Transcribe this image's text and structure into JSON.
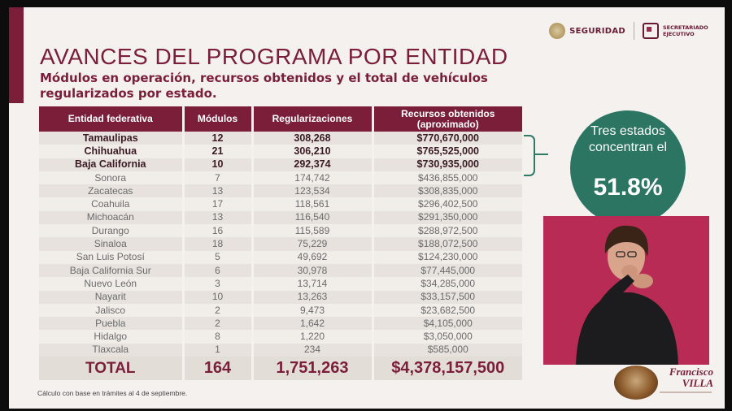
{
  "header": {
    "logo_seguridad": "SEGURIDAD",
    "logo_secretariado": "SECRETARIADO EJECUTIVO"
  },
  "slide": {
    "title": "AVANCES DEL PROGRAMA POR ENTIDAD",
    "subtitle": "Módulos en operación, recursos obtenidos y el total de vehículos regularizados por estado.",
    "footnote": "Cálculo con base en trámites al 4 de septiembre."
  },
  "table": {
    "headers": [
      "Entidad federativa",
      "Módulos",
      "Regularizaciones",
      "Recursos obtenidos (aproximado)"
    ],
    "rows": [
      {
        "entidad": "Tamaulipas",
        "modulos": "12",
        "regularizaciones": "308,268",
        "recursos": "$770,670,000",
        "highlight": true
      },
      {
        "entidad": "Chihuahua",
        "modulos": "21",
        "regularizaciones": "306,210",
        "recursos": "$765,525,000",
        "highlight": true
      },
      {
        "entidad": "Baja California",
        "modulos": "10",
        "regularizaciones": "292,374",
        "recursos": "$730,935,000",
        "highlight": true
      },
      {
        "entidad": "Sonora",
        "modulos": "7",
        "regularizaciones": "174,742",
        "recursos": "$436,855,000",
        "highlight": false
      },
      {
        "entidad": "Zacatecas",
        "modulos": "13",
        "regularizaciones": "123,534",
        "recursos": "$308,835,000",
        "highlight": false
      },
      {
        "entidad": "Coahuila",
        "modulos": "17",
        "regularizaciones": "118,561",
        "recursos": "$296,402,500",
        "highlight": false
      },
      {
        "entidad": "Michoacán",
        "modulos": "13",
        "regularizaciones": "116,540",
        "recursos": "$291,350,000",
        "highlight": false
      },
      {
        "entidad": "Durango",
        "modulos": "16",
        "regularizaciones": "115,589",
        "recursos": "$288,972,500",
        "highlight": false
      },
      {
        "entidad": "Sinaloa",
        "modulos": "18",
        "regularizaciones": "75,229",
        "recursos": "$188,072,500",
        "highlight": false
      },
      {
        "entidad": "San Luis Potosí",
        "modulos": "5",
        "regularizaciones": "49,692",
        "recursos": "$124,230,000",
        "highlight": false
      },
      {
        "entidad": "Baja California Sur",
        "modulos": "6",
        "regularizaciones": "30,978",
        "recursos": "$77,445,000",
        "highlight": false
      },
      {
        "entidad": "Nuevo León",
        "modulos": "3",
        "regularizaciones": "13,714",
        "recursos": "$34,285,000",
        "highlight": false
      },
      {
        "entidad": "Nayarit",
        "modulos": "10",
        "regularizaciones": "13,263",
        "recursos": "$33,157,500",
        "highlight": false
      },
      {
        "entidad": "Jalisco",
        "modulos": "2",
        "regularizaciones": "9,473",
        "recursos": "$23,682,500",
        "highlight": false
      },
      {
        "entidad": "Puebla",
        "modulos": "2",
        "regularizaciones": "1,642",
        "recursos": "$4,105,000",
        "highlight": false
      },
      {
        "entidad": "Hidalgo",
        "modulos": "8",
        "regularizaciones": "1,220",
        "recursos": "$3,050,000",
        "highlight": false
      },
      {
        "entidad": "Tlaxcala",
        "modulos": "1",
        "regularizaciones": "234",
        "recursos": "$585,000",
        "highlight": false
      }
    ],
    "total": {
      "label": "TOTAL",
      "modulos": "164",
      "regularizaciones": "1,751,263",
      "recursos": "$4,378,157,500"
    }
  },
  "callout": {
    "text": "Tres estados concentran el",
    "percent": "51.8%",
    "color": "#2b7562"
  },
  "branding": {
    "villa_name": "Francisco VILLA",
    "accent": "#7b1e3a"
  },
  "icons": {
    "seal": "national-seal-icon",
    "sesnsp": "sesnsp-logo-icon",
    "villa": "villa-portrait-icon"
  }
}
